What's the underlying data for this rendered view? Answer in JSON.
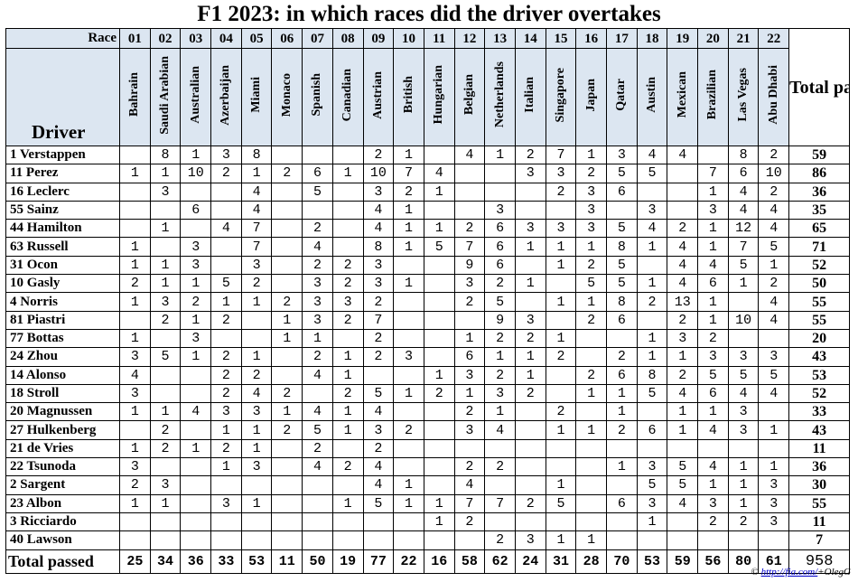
{
  "title": "F1 2023: in which races did the driver overtakes",
  "header": {
    "race_label": "Race",
    "driver_label": "Driver",
    "total_label": "Total pass"
  },
  "races": [
    {
      "num": "01",
      "name": "Bahrain"
    },
    {
      "num": "02",
      "name": "Saudi Arabian"
    },
    {
      "num": "03",
      "name": "Australian"
    },
    {
      "num": "04",
      "name": "Azerbaijan"
    },
    {
      "num": "05",
      "name": "Miami"
    },
    {
      "num": "06",
      "name": "Monaco"
    },
    {
      "num": "07",
      "name": "Spanish"
    },
    {
      "num": "08",
      "name": "Canadian"
    },
    {
      "num": "09",
      "name": "Austrian"
    },
    {
      "num": "10",
      "name": "British"
    },
    {
      "num": "11",
      "name": "Hungarian"
    },
    {
      "num": "12",
      "name": "Belgian"
    },
    {
      "num": "13",
      "name": "Netherlands"
    },
    {
      "num": "14",
      "name": "Italian"
    },
    {
      "num": "15",
      "name": "Singapore"
    },
    {
      "num": "16",
      "name": "Japan"
    },
    {
      "num": "17",
      "name": "Qatar"
    },
    {
      "num": "18",
      "name": "Austin"
    },
    {
      "num": "19",
      "name": "Mexican"
    },
    {
      "num": "20",
      "name": "Brazilian"
    },
    {
      "num": "21",
      "name": "Las Vegas"
    },
    {
      "num": "22",
      "name": "Abu Dhabi"
    }
  ],
  "drivers": [
    {
      "name": "1 Verstappen",
      "cells": [
        "",
        "8",
        "1",
        "3",
        "8",
        "",
        "",
        "",
        "2",
        "1",
        "",
        "4",
        "1",
        "2",
        "7",
        "1",
        "3",
        "4",
        "4",
        "",
        "8",
        "2"
      ],
      "total": "59"
    },
    {
      "name": "11 Perez",
      "cells": [
        "1",
        "1",
        "10",
        "2",
        "1",
        "2",
        "6",
        "1",
        "10",
        "7",
        "4",
        "",
        "",
        "3",
        "3",
        "2",
        "5",
        "5",
        "",
        "7",
        "6",
        "10"
      ],
      "total": "86"
    },
    {
      "name": "16 Leclerc",
      "cells": [
        "",
        "3",
        "",
        "",
        "4",
        "",
        "5",
        "",
        "3",
        "2",
        "1",
        "",
        "",
        "",
        "2",
        "3",
        "6",
        "",
        "",
        "1",
        "4",
        "2"
      ],
      "total": "36"
    },
    {
      "name": "55 Sainz",
      "cells": [
        "",
        "",
        "6",
        "",
        "4",
        "",
        "",
        "",
        "4",
        "1",
        "",
        "",
        "3",
        "",
        "",
        "3",
        "",
        "3",
        "",
        "3",
        "4",
        "4"
      ],
      "total": "35"
    },
    {
      "name": "44 Hamilton",
      "cells": [
        "",
        "1",
        "",
        "4",
        "7",
        "",
        "2",
        "",
        "4",
        "1",
        "1",
        "2",
        "6",
        "3",
        "3",
        "3",
        "5",
        "4",
        "2",
        "1",
        "12",
        "4"
      ],
      "total": "65"
    },
    {
      "name": "63 Russell",
      "cells": [
        "1",
        "",
        "3",
        "",
        "7",
        "",
        "4",
        "",
        "8",
        "1",
        "5",
        "7",
        "6",
        "1",
        "1",
        "1",
        "8",
        "1",
        "4",
        "1",
        "7",
        "5"
      ],
      "total": "71"
    },
    {
      "name": "31 Ocon",
      "cells": [
        "1",
        "1",
        "3",
        "",
        "3",
        "",
        "2",
        "2",
        "3",
        "",
        "",
        "9",
        "6",
        "",
        "1",
        "2",
        "5",
        "",
        "4",
        "4",
        "5",
        "1"
      ],
      "total": "52"
    },
    {
      "name": "10 Gasly",
      "cells": [
        "2",
        "1",
        "1",
        "5",
        "2",
        "",
        "3",
        "2",
        "3",
        "1",
        "",
        "3",
        "2",
        "1",
        "",
        "5",
        "5",
        "1",
        "4",
        "6",
        "1",
        "2"
      ],
      "total": "50"
    },
    {
      "name": "4 Norris",
      "cells": [
        "1",
        "3",
        "2",
        "1",
        "1",
        "2",
        "3",
        "3",
        "2",
        "",
        "",
        "2",
        "5",
        "",
        "1",
        "1",
        "8",
        "2",
        "13",
        "1",
        "",
        "4"
      ],
      "total": "55"
    },
    {
      "name": "81 Piastri",
      "cells": [
        "",
        "2",
        "1",
        "2",
        "",
        "1",
        "3",
        "2",
        "7",
        "",
        "",
        "",
        "9",
        "3",
        "",
        "2",
        "6",
        "",
        "2",
        "1",
        "10",
        "4"
      ],
      "total": "55"
    },
    {
      "name": "77 Bottas",
      "cells": [
        "1",
        "",
        "3",
        "",
        "",
        "1",
        "1",
        "",
        "2",
        "",
        "",
        "1",
        "2",
        "2",
        "1",
        "",
        "",
        "1",
        "3",
        "2",
        "",
        ""
      ],
      "total": "20"
    },
    {
      "name": "24 Zhou",
      "cells": [
        "3",
        "5",
        "1",
        "2",
        "1",
        "",
        "2",
        "1",
        "2",
        "3",
        "",
        "6",
        "1",
        "1",
        "2",
        "",
        "2",
        "1",
        "1",
        "3",
        "3",
        "3"
      ],
      "total": "43"
    },
    {
      "name": "14 Alonso",
      "cells": [
        "4",
        "",
        "",
        "2",
        "2",
        "",
        "4",
        "1",
        "",
        "",
        "1",
        "3",
        "2",
        "1",
        "",
        "2",
        "6",
        "8",
        "2",
        "5",
        "5",
        "5"
      ],
      "total": "53"
    },
    {
      "name": "18 Stroll",
      "cells": [
        "3",
        "",
        "",
        "2",
        "4",
        "2",
        "",
        "2",
        "5",
        "1",
        "2",
        "1",
        "3",
        "2",
        "",
        "1",
        "1",
        "5",
        "4",
        "6",
        "4",
        "4"
      ],
      "total": "52"
    },
    {
      "name": "20 Magnussen",
      "cells": [
        "1",
        "1",
        "4",
        "3",
        "3",
        "1",
        "4",
        "1",
        "4",
        "",
        "",
        "2",
        "1",
        "",
        "2",
        "",
        "1",
        "",
        "1",
        "1",
        "3",
        ""
      ],
      "total": "33"
    },
    {
      "name": "27 Hulkenberg",
      "cells": [
        "",
        "2",
        "",
        "1",
        "1",
        "2",
        "5",
        "1",
        "3",
        "2",
        "",
        "3",
        "4",
        "",
        "1",
        "1",
        "2",
        "6",
        "1",
        "4",
        "3",
        "1"
      ],
      "total": "43"
    },
    {
      "name": "21 de Vries",
      "cells": [
        "1",
        "2",
        "1",
        "2",
        "1",
        "",
        "2",
        "",
        "2",
        "",
        "",
        "",
        "",
        "",
        "",
        "",
        "",
        "",
        "",
        "",
        "",
        ""
      ],
      "total": "11"
    },
    {
      "name": "22 Tsunoda",
      "cells": [
        "3",
        "",
        "",
        "1",
        "3",
        "",
        "4",
        "2",
        "4",
        "",
        "",
        "2",
        "2",
        "",
        "",
        "",
        "1",
        "3",
        "5",
        "4",
        "1",
        "1"
      ],
      "total": "36"
    },
    {
      "name": "2 Sargent",
      "cells": [
        "2",
        "3",
        "",
        "",
        "",
        "",
        "",
        "",
        "4",
        "1",
        "",
        "4",
        "",
        "",
        "1",
        "",
        "",
        "5",
        "5",
        "1",
        "1",
        "3"
      ],
      "total": "30"
    },
    {
      "name": "23 Albon",
      "cells": [
        "1",
        "1",
        "",
        "3",
        "1",
        "",
        "",
        "1",
        "5",
        "1",
        "1",
        "7",
        "7",
        "2",
        "5",
        "",
        "6",
        "3",
        "4",
        "3",
        "1",
        "3"
      ],
      "total": "55"
    },
    {
      "name": "3 Ricciardo",
      "cells": [
        "",
        "",
        "",
        "",
        "",
        "",
        "",
        "",
        "",
        "",
        "1",
        "2",
        "",
        "",
        "",
        "",
        "",
        "1",
        "",
        "2",
        "2",
        "3"
      ],
      "total": "11"
    },
    {
      "name": "40 Lawson",
      "cells": [
        "",
        "",
        "",
        "",
        "",
        "",
        "",
        "",
        "",
        "",
        "",
        "",
        "2",
        "3",
        "1",
        "1",
        "",
        "",
        "",
        "",
        "",
        ""
      ],
      "total": "7"
    }
  ],
  "totals": {
    "label": "Total passed",
    "values": [
      "25",
      "34",
      "36",
      "33",
      "53",
      "11",
      "50",
      "19",
      "77",
      "22",
      "16",
      "58",
      "62",
      "24",
      "31",
      "28",
      "70",
      "53",
      "59",
      "56",
      "80",
      "61"
    ],
    "grand": "958"
  },
  "credit": {
    "prefix": "©",
    "link": "http://fia.com/",
    "suffix": "+OlegG"
  }
}
